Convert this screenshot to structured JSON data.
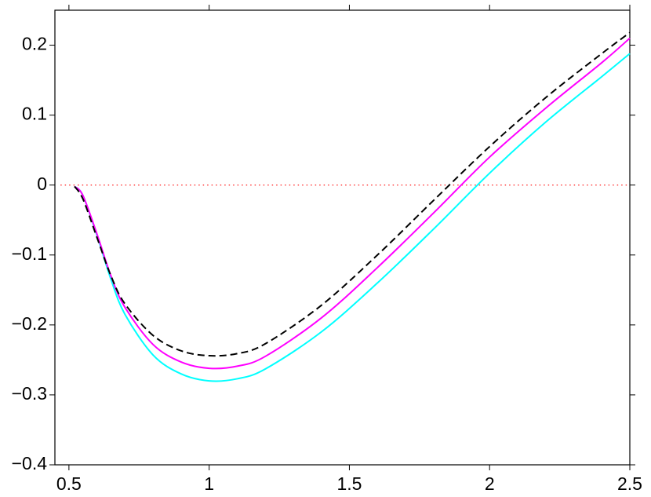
{
  "chart_data": {
    "type": "line",
    "x": [
      0.52,
      0.55,
      0.6,
      0.65,
      0.7,
      0.8,
      0.9,
      1.0,
      1.1,
      1.2,
      1.4,
      1.6,
      1.8,
      2.0,
      2.2,
      2.4,
      2.5
    ],
    "series": [
      {
        "color": "#00ffff",
        "dash": false,
        "values": [
          -0.002,
          -0.015,
          -0.072,
          -0.135,
          -0.185,
          -0.243,
          -0.27,
          -0.28,
          -0.277,
          -0.263,
          -0.21,
          -0.14,
          -0.063,
          0.017,
          0.09,
          0.155,
          0.188
        ]
      },
      {
        "color": "#ff00ff",
        "dash": false,
        "values": [
          -0.002,
          -0.015,
          -0.07,
          -0.13,
          -0.175,
          -0.228,
          -0.253,
          -0.262,
          -0.259,
          -0.245,
          -0.19,
          -0.118,
          -0.04,
          0.04,
          0.11,
          0.175,
          0.21
        ]
      },
      {
        "color": "#000000",
        "dash": true,
        "values": [
          -0.002,
          -0.02,
          -0.075,
          -0.13,
          -0.17,
          -0.215,
          -0.237,
          -0.244,
          -0.241,
          -0.227,
          -0.172,
          -0.1,
          -0.022,
          0.055,
          0.125,
          0.188,
          0.218
        ]
      }
    ],
    "reference_line": {
      "value": 0,
      "color": "#ff3030"
    },
    "xlim": [
      0.45,
      2.5
    ],
    "ylim": [
      -0.4,
      0.25
    ],
    "xticks": [
      0.5,
      1,
      1.5,
      2,
      2.5
    ],
    "yticks": [
      {
        "value": -0.4,
        "label": "−0.4"
      },
      {
        "value": -0.3,
        "label": "−0.3"
      },
      {
        "value": -0.2,
        "label": "−0.2"
      },
      {
        "value": -0.1,
        "label": "−0.1"
      },
      0,
      0.1,
      0.2
    ],
    "grid": false
  }
}
